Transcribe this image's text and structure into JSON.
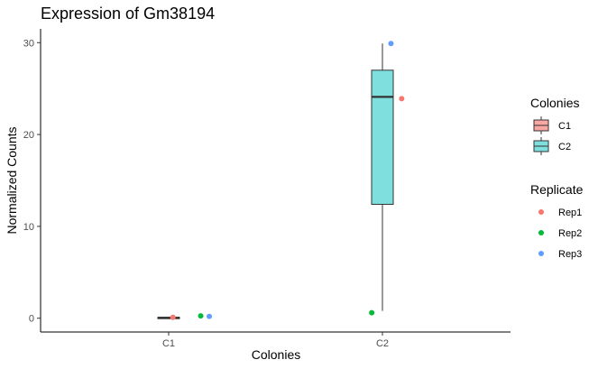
{
  "chart_data": {
    "type": "box",
    "title": "Expression of Gm38194",
    "xlabel": "Colonies",
    "ylabel": "Normalized Counts",
    "categories": [
      "C1",
      "C2"
    ],
    "ylim": [
      -1.5,
      31.5
    ],
    "yticks": [
      0,
      10,
      20,
      30
    ],
    "grid": false,
    "boxes": [
      {
        "category": "C1",
        "min": 0.0,
        "q1": 0.0,
        "median": 0.05,
        "q3": 0.1,
        "max": 0.1,
        "color": "#f8a7a3"
      },
      {
        "category": "C2",
        "min": 0.8,
        "q1": 12.4,
        "median": 24.1,
        "q3": 27.0,
        "max": 29.9,
        "color": "#7fdfdf"
      }
    ],
    "points": [
      {
        "category": "C1",
        "replicate": "Rep1",
        "x_offset": 0.02,
        "y": 0.1
      },
      {
        "category": "C1",
        "replicate": "Rep2",
        "x_offset": 0.15,
        "y": 0.25
      },
      {
        "category": "C1",
        "replicate": "Rep3",
        "x_offset": 0.19,
        "y": 0.2
      },
      {
        "category": "C2",
        "replicate": "Rep1",
        "x_offset": 0.09,
        "y": 23.9
      },
      {
        "category": "C2",
        "replicate": "Rep2",
        "x_offset": -0.05,
        "y": 0.6
      },
      {
        "category": "C2",
        "replicate": "Rep3",
        "x_offset": 0.04,
        "y": 29.9
      }
    ],
    "legend_placement": "right",
    "legend_colonies": {
      "title": "Colonies",
      "items": [
        {
          "label": "C1",
          "color": "#f8a7a3"
        },
        {
          "label": "C2",
          "color": "#7fdfdf"
        }
      ]
    },
    "legend_replicate": {
      "title": "Replicate",
      "items": [
        {
          "label": "Rep1",
          "color": "#f8766d"
        },
        {
          "label": "Rep2",
          "color": "#00ba38"
        },
        {
          "label": "Rep3",
          "color": "#619cff"
        }
      ]
    }
  }
}
